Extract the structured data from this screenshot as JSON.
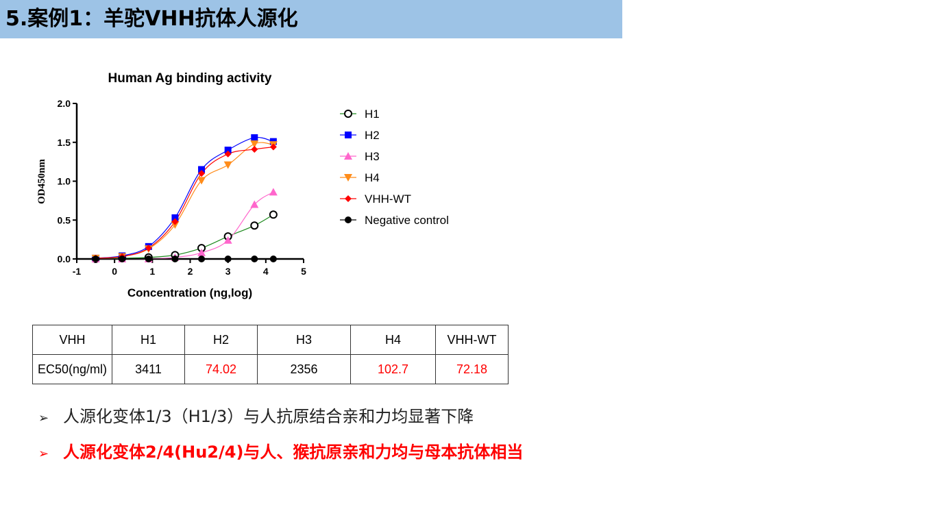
{
  "header": {
    "title": "5.案例1：羊驼VHH抗体人源化"
  },
  "chart_data": {
    "type": "scatter",
    "title": "Human Ag binding activity",
    "xlabel": "Concentration (ng,log)",
    "ylabel": "OD450nm",
    "xlim": [
      -1,
      5
    ],
    "ylim": [
      0,
      2.0
    ],
    "x_ticks": [
      "-1",
      "0",
      "1",
      "2",
      "3",
      "4",
      "5"
    ],
    "y_ticks": [
      "0.0",
      "0.5",
      "1.0",
      "1.5",
      "2.0"
    ],
    "legend_position": "right",
    "series": [
      {
        "name": "H1",
        "color": "#000000",
        "marker": "open-circle",
        "line_color": "#1e8a1e",
        "x": [
          -0.5,
          0.2,
          0.9,
          1.6,
          2.3,
          3.0,
          3.7,
          4.2
        ],
        "y": [
          0.0,
          0.01,
          0.02,
          0.05,
          0.14,
          0.29,
          0.43,
          0.57
        ]
      },
      {
        "name": "H2",
        "color": "#0000ff",
        "marker": "square",
        "line_color": "#0000ff",
        "x": [
          -0.5,
          0.2,
          0.9,
          1.6,
          2.3,
          3.0,
          3.7,
          4.2
        ],
        "y": [
          0.01,
          0.04,
          0.16,
          0.53,
          1.15,
          1.4,
          1.56,
          1.51
        ]
      },
      {
        "name": "H3",
        "color": "#ff66cc",
        "marker": "triangle-up",
        "line_color": "#ff66cc",
        "x": [
          -0.5,
          0.2,
          0.9,
          1.6,
          2.3,
          3.0,
          3.7,
          4.2
        ],
        "y": [
          0.0,
          0.0,
          0.0,
          0.02,
          0.08,
          0.24,
          0.7,
          0.86
        ]
      },
      {
        "name": "H4",
        "color": "#ff8c1a",
        "marker": "triangle-down",
        "line_color": "#ff8c1a",
        "x": [
          -0.5,
          0.2,
          0.9,
          1.6,
          2.3,
          3.0,
          3.7,
          4.2
        ],
        "y": [
          0.01,
          0.03,
          0.13,
          0.44,
          1.01,
          1.21,
          1.48,
          1.47
        ]
      },
      {
        "name": "VHH-WT",
        "color": "#ff0000",
        "marker": "diamond",
        "line_color": "#ff0000",
        "x": [
          -0.5,
          0.2,
          0.9,
          1.6,
          2.3,
          3.0,
          3.7,
          4.2
        ],
        "y": [
          0.01,
          0.03,
          0.14,
          0.48,
          1.1,
          1.35,
          1.41,
          1.44
        ]
      },
      {
        "name": "Negative control",
        "color": "#000000",
        "marker": "filled-circle",
        "line_color": "#000000",
        "x": [
          -0.5,
          0.2,
          0.9,
          1.6,
          2.3,
          3.0,
          3.7,
          4.2
        ],
        "y": [
          0.0,
          0.0,
          0.0,
          0.0,
          0.0,
          0.0,
          0.0,
          0.0
        ]
      }
    ]
  },
  "table": {
    "header": [
      "VHH",
      "H1",
      "H2",
      "H3",
      "H4",
      "VHH-WT"
    ],
    "row": [
      "EC50(ng/ml)",
      "3411",
      "74.02",
      "2356",
      "102.7",
      "72.18"
    ],
    "highlight_color": "#ff0000"
  },
  "bullets": [
    {
      "marker": "➢",
      "text": "人源化变体1/3（H1/3）与人抗原结合亲和力均显著下降"
    },
    {
      "marker": "➢",
      "text": "人源化变体2/4(Hu2/4)与人、猴抗原亲和力均与母本抗体相当"
    }
  ]
}
